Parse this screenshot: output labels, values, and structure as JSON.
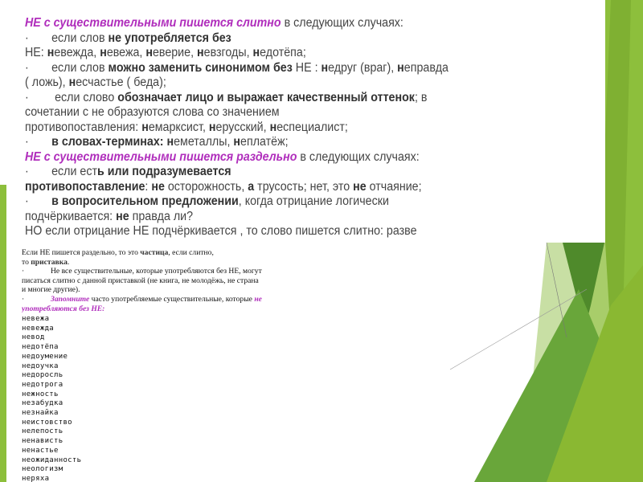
{
  "colors": {
    "accent_purple": "#b02ebc",
    "green_light": "#8cbf3a",
    "green_dark": "#4e8a2a",
    "text": "#444444"
  },
  "top_block": {
    "lines": [
      [
        [
          "p",
          "НЕ с существительными пишется слитно"
        ],
        [
          "n",
          " в следующих случаях:"
        ]
      ],
      [
        [
          "bul",
          "·"
        ],
        [
          "n",
          "если слов "
        ],
        [
          "b",
          "не употребляется без"
        ]
      ],
      [
        [
          "n",
          "НЕ: "
        ],
        [
          "b",
          "н"
        ],
        [
          "n",
          "евежда, "
        ],
        [
          "b",
          "н"
        ],
        [
          "n",
          "евежа, "
        ],
        [
          "b",
          "н"
        ],
        [
          "n",
          "еверие, "
        ],
        [
          "b",
          "н"
        ],
        [
          "n",
          "евзгоды, "
        ],
        [
          "b",
          "н"
        ],
        [
          "n",
          "едотёпа;"
        ]
      ],
      [
        [
          "bul",
          "·"
        ],
        [
          "n",
          "если слов "
        ],
        [
          "b",
          "можно заменить  синонимом без "
        ],
        [
          "n",
          "НЕ : "
        ],
        [
          "b",
          "н"
        ],
        [
          "n",
          "едруг (враг), "
        ],
        [
          "b",
          "н"
        ],
        [
          "n",
          "еправда"
        ]
      ],
      [
        [
          "n",
          "( ложь), "
        ],
        [
          "b",
          "н"
        ],
        [
          "n",
          "есчастье ( беда);"
        ]
      ],
      [
        [
          "bul",
          "·"
        ],
        [
          "n",
          " если слово "
        ],
        [
          "b",
          "обозначает лицо и выражает качественный оттенок"
        ],
        [
          "n",
          "; в"
        ]
      ],
      [
        [
          "n",
          "сочетании с не образуются слова со значением"
        ]
      ],
      [
        [
          "n",
          "противопоставления: "
        ],
        [
          "b",
          "н"
        ],
        [
          "n",
          "емарксист, "
        ],
        [
          "b",
          "н"
        ],
        [
          "n",
          "ерусский, "
        ],
        [
          "b",
          "н"
        ],
        [
          "n",
          "еспециалист;"
        ]
      ],
      [
        [
          "bul",
          "·"
        ],
        [
          "b",
          "в словах-терминах: н"
        ],
        [
          "n",
          "еметаллы, "
        ],
        [
          "b",
          "н"
        ],
        [
          "n",
          "еплатёж;"
        ]
      ],
      [
        [
          "p",
          "НЕ с существительными пишется раздельно"
        ],
        [
          "n",
          " в следующих случаях:"
        ]
      ],
      [
        [
          "bul",
          "·"
        ],
        [
          "n",
          "если ест"
        ],
        [
          "b",
          "ь или подразумевается"
        ]
      ],
      [
        [
          "b",
          "противопоставление"
        ],
        [
          "n",
          ": "
        ],
        [
          "b",
          "не"
        ],
        [
          "n",
          " осторожность, "
        ],
        [
          "b",
          "а"
        ],
        [
          "n",
          " трусость; нет, это "
        ],
        [
          "b",
          "не"
        ],
        [
          "n",
          " отчаяние;"
        ]
      ],
      [
        [
          "bul",
          "·"
        ],
        [
          "b",
          "в вопросительном предложении"
        ],
        [
          "n",
          ", когда отрицание логически"
        ]
      ],
      [
        [
          "n",
          "подчёркивается: "
        ],
        [
          "b",
          "не"
        ],
        [
          "n",
          " правда ли?"
        ]
      ],
      [
        [
          "n",
          "НО если отрицание НЕ подчёркивается , то слово пишется слитно: разве"
        ]
      ]
    ]
  },
  "bottom_block": {
    "lines": [
      [
        [
          "n",
          "Если  НЕ пишется раздельно, то это "
        ],
        [
          "b",
          "частица"
        ],
        [
          "n",
          ", если слитно,"
        ]
      ],
      [
        [
          "n",
          "то "
        ],
        [
          "b",
          "приставка"
        ],
        [
          "n",
          "."
        ]
      ],
      [
        [
          "bul",
          "·"
        ],
        [
          "n",
          "Не все существительные, которые употребляются без НЕ, могут"
        ]
      ],
      [
        [
          "n",
          "писаться слитно с данной приставкой (не книга, не молодёжь, не страна"
        ]
      ],
      [
        [
          "n",
          "и многие другие)."
        ]
      ],
      [
        [
          "bul",
          "·"
        ],
        [
          "p",
          "Запомните"
        ],
        [
          "n",
          " часто употребляемые существительные, которые "
        ],
        [
          "p",
          "не"
        ]
      ],
      [
        [
          "p",
          "употребляются без НЕ:"
        ]
      ]
    ],
    "words": [
      "невежа",
      "невежда",
      "невод",
      "недотёпа",
      "недоумение",
      "недоучка",
      "недоросль",
      "недотрога",
      "нежность",
      "незабудка",
      "незнайка",
      "неистовство",
      "нелепость",
      "ненависть",
      "ненастье",
      "неожиданность",
      "неологизм",
      "неряха"
    ]
  }
}
